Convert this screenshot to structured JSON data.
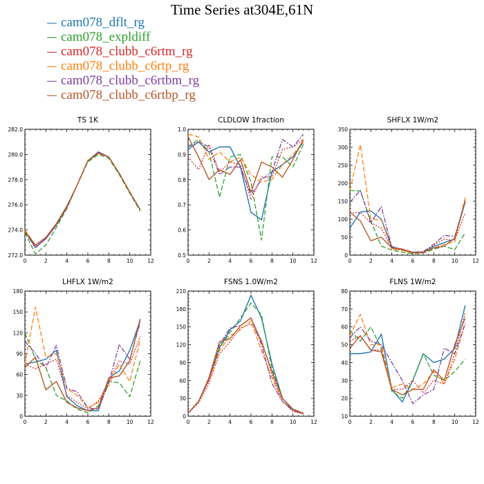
{
  "title": "Time Series at304E,61N",
  "legend": [
    {
      "name": "cam078_dflt_rg",
      "color": "#1f77b4"
    },
    {
      "name": "cam078_expldiff",
      "color": "#2ca02c"
    },
    {
      "name": "cam078_clubb_c6rtm_rg",
      "color": "#d62728"
    },
    {
      "name": "cam078_clubb_c6rtp_rg",
      "color": "#ff7f0e"
    },
    {
      "name": "cam078_clubb_c6rtbm_rg",
      "color": "#7b3f9e"
    },
    {
      "name": "cam078_clubb_c6rtbp_rg",
      "color": "#b5562a"
    }
  ],
  "chart_data": [
    {
      "type": "line",
      "title": "TS   1K",
      "xlim": [
        0,
        12
      ],
      "ylim": [
        272,
        282
      ],
      "xticks": [
        0,
        2,
        4,
        6,
        8,
        10,
        12
      ],
      "yticks": [
        272,
        274,
        276,
        278,
        280,
        282
      ],
      "ytick_labels": [
        "272.0",
        "274.0",
        "276.0",
        "278.0",
        "280.0",
        "282.0"
      ],
      "x": [
        0,
        1,
        2,
        3,
        4,
        5,
        6,
        7,
        8,
        9,
        10,
        11
      ],
      "series": [
        {
          "name": "cam078_dflt_rg",
          "values": [
            273.9,
            272.6,
            273.3,
            274.4,
            275.8,
            277.6,
            279.5,
            280.2,
            279.8,
            278.5,
            277.0,
            275.6
          ]
        },
        {
          "name": "cam078_expldiff",
          "values": [
            273.8,
            272.1,
            272.8,
            274.2,
            275.7,
            277.6,
            279.4,
            280.0,
            279.7,
            278.4,
            276.9,
            275.5
          ]
        },
        {
          "name": "cam078_clubb_c6rtm_rg",
          "values": [
            273.9,
            272.7,
            273.3,
            274.4,
            275.8,
            277.6,
            279.5,
            280.2,
            279.8,
            278.5,
            277.0,
            275.6
          ]
        },
        {
          "name": "cam078_clubb_c6rtp_rg",
          "values": [
            274.0,
            272.8,
            273.4,
            274.5,
            275.8,
            277.6,
            279.5,
            280.1,
            279.8,
            278.5,
            277.0,
            275.6
          ]
        },
        {
          "name": "cam078_clubb_c6rtbm_rg",
          "values": [
            273.9,
            272.6,
            273.3,
            274.4,
            275.8,
            277.6,
            279.5,
            280.2,
            279.8,
            278.5,
            277.0,
            275.6
          ]
        },
        {
          "name": "cam078_clubb_c6rtbp_rg",
          "values": [
            273.9,
            272.8,
            273.4,
            274.5,
            275.9,
            277.6,
            279.5,
            280.1,
            279.8,
            278.5,
            277.0,
            275.6
          ]
        }
      ]
    },
    {
      "type": "line",
      "title": "CLDLOW   1fraction",
      "xlim": [
        0,
        12
      ],
      "ylim": [
        0.5,
        1.0
      ],
      "xticks": [
        0,
        2,
        4,
        6,
        8,
        10,
        12
      ],
      "yticks": [
        0.5,
        0.6,
        0.7,
        0.8,
        0.9,
        1.0
      ],
      "ytick_labels": [
        "0.5",
        "0.6",
        "0.7",
        "0.8",
        "0.9",
        "1.0"
      ],
      "x": [
        0,
        1,
        2,
        3,
        4,
        5,
        6,
        7,
        8,
        9,
        10,
        11
      ],
      "series": [
        {
          "name": "cam078_dflt_rg",
          "values": [
            0.92,
            0.95,
            0.91,
            0.93,
            0.93,
            0.85,
            0.67,
            0.64,
            0.83,
            0.86,
            0.89,
            0.95
          ]
        },
        {
          "name": "cam078_expldiff",
          "values": [
            0.93,
            0.96,
            0.91,
            0.73,
            0.89,
            0.9,
            0.79,
            0.56,
            0.89,
            0.89,
            0.85,
            0.94
          ]
        },
        {
          "name": "cam078_clubb_c6rtm_rg",
          "values": [
            0.89,
            0.84,
            0.94,
            0.83,
            0.87,
            0.86,
            0.72,
            0.81,
            0.81,
            0.92,
            0.93,
            0.96
          ]
        },
        {
          "name": "cam078_clubb_c6rtp_rg",
          "values": [
            0.98,
            0.97,
            0.88,
            0.91,
            0.87,
            0.89,
            0.82,
            0.79,
            0.8,
            0.86,
            0.9,
            0.95
          ]
        },
        {
          "name": "cam078_clubb_c6rtbm_rg",
          "values": [
            0.93,
            0.95,
            0.93,
            0.82,
            0.85,
            0.85,
            0.74,
            0.8,
            0.83,
            0.96,
            0.93,
            0.98
          ]
        },
        {
          "name": "cam078_clubb_c6rtbp_rg",
          "values": [
            0.97,
            0.89,
            0.8,
            0.84,
            0.82,
            0.88,
            0.75,
            0.87,
            0.85,
            0.81,
            0.88,
            0.96
          ]
        }
      ]
    },
    {
      "type": "line",
      "title": "SHFLX   1W/m2",
      "xlim": [
        0,
        12
      ],
      "ylim": [
        0,
        350
      ],
      "xticks": [
        0,
        2,
        4,
        6,
        8,
        10,
        12
      ],
      "yticks": [
        0,
        50,
        100,
        150,
        200,
        250,
        300,
        350
      ],
      "ytick_labels": [
        "0",
        "50",
        "100",
        "150",
        "200",
        "250",
        "300",
        "350"
      ],
      "x": [
        0,
        1,
        2,
        3,
        4,
        5,
        6,
        7,
        8,
        9,
        10,
        11
      ],
      "series": [
        {
          "name": "cam078_dflt_rg",
          "values": [
            75,
            120,
            123,
            100,
            24,
            15,
            8,
            8,
            24,
            35,
            45,
            148
          ]
        },
        {
          "name": "cam078_expldiff",
          "values": [
            180,
            178,
            95,
            25,
            14,
            8,
            4,
            6,
            16,
            25,
            15,
            62
          ]
        },
        {
          "name": "cam078_clubb_c6rtm_rg",
          "values": [
            118,
            118,
            90,
            75,
            18,
            14,
            6,
            6,
            28,
            45,
            40,
            118
          ]
        },
        {
          "name": "cam078_clubb_c6rtp_rg",
          "values": [
            180,
            307,
            100,
            98,
            17,
            13,
            6,
            8,
            20,
            30,
            38,
            160
          ]
        },
        {
          "name": "cam078_clubb_c6rtbm_rg",
          "values": [
            147,
            180,
            90,
            135,
            22,
            17,
            8,
            10,
            30,
            55,
            52,
            148
          ]
        },
        {
          "name": "cam078_clubb_c6rtbp_rg",
          "values": [
            120,
            95,
            40,
            50,
            20,
            17,
            7,
            8,
            20,
            25,
            48,
            152
          ]
        }
      ]
    },
    {
      "type": "line",
      "title": "LHFLX   1W/m2",
      "xlim": [
        0,
        12
      ],
      "ylim": [
        0,
        180
      ],
      "xticks": [
        0,
        2,
        4,
        6,
        8,
        10,
        12
      ],
      "yticks": [
        0,
        30,
        60,
        90,
        120,
        150,
        180
      ],
      "ytick_labels": [
        "0",
        "30",
        "60",
        "90",
        "120",
        "150",
        "180"
      ],
      "x": [
        0,
        1,
        2,
        3,
        4,
        5,
        6,
        7,
        8,
        9,
        10,
        11
      ],
      "series": [
        {
          "name": "cam078_dflt_rg",
          "values": [
            75,
            78,
            82,
            95,
            28,
            15,
            8,
            8,
            55,
            65,
            95,
            138
          ]
        },
        {
          "name": "cam078_expldiff",
          "values": [
            120,
            82,
            70,
            30,
            22,
            10,
            5,
            15,
            50,
            48,
            28,
            80
          ]
        },
        {
          "name": "cam078_clubb_c6rtm_rg",
          "values": [
            75,
            68,
            75,
            82,
            30,
            20,
            10,
            22,
            50,
            80,
            75,
            115
          ]
        },
        {
          "name": "cam078_clubb_c6rtp_rg",
          "values": [
            75,
            157,
            85,
            90,
            40,
            30,
            12,
            20,
            45,
            75,
            50,
            110
          ]
        },
        {
          "name": "cam078_clubb_c6rtbm_rg",
          "values": [
            108,
            90,
            70,
            102,
            40,
            35,
            12,
            10,
            48,
            103,
            82,
            135
          ]
        },
        {
          "name": "cam078_clubb_c6rtbp_rg",
          "values": [
            70,
            85,
            38,
            50,
            20,
            12,
            8,
            12,
            55,
            58,
            80,
            140
          ]
        }
      ]
    },
    {
      "type": "line",
      "title": "FSNS   1.0W/m2",
      "xlim": [
        0,
        12
      ],
      "ylim": [
        0,
        210
      ],
      "xticks": [
        0,
        2,
        4,
        6,
        8,
        10,
        12
      ],
      "yticks": [
        0,
        30,
        60,
        90,
        120,
        150,
        180,
        210
      ],
      "ytick_labels": [
        "0",
        "30",
        "60",
        "90",
        "120",
        "150",
        "180",
        "210"
      ],
      "x": [
        0,
        1,
        2,
        3,
        4,
        5,
        6,
        7,
        8,
        9,
        10,
        11
      ],
      "series": [
        {
          "name": "cam078_dflt_rg",
          "values": [
            5,
            25,
            62,
            115,
            145,
            160,
            203,
            165,
            88,
            30,
            10,
            4
          ]
        },
        {
          "name": "cam078_expldiff",
          "values": [
            5,
            25,
            62,
            115,
            140,
            165,
            190,
            170,
            80,
            30,
            10,
            4
          ]
        },
        {
          "name": "cam078_clubb_c6rtm_rg",
          "values": [
            5,
            22,
            55,
            105,
            125,
            148,
            155,
            128,
            70,
            25,
            8,
            4
          ]
        },
        {
          "name": "cam078_clubb_c6rtp_rg",
          "values": [
            5,
            25,
            60,
            110,
            135,
            145,
            160,
            110,
            65,
            25,
            10,
            4
          ]
        },
        {
          "name": "cam078_clubb_c6rtbm_rg",
          "values": [
            5,
            25,
            62,
            120,
            148,
            152,
            165,
            120,
            55,
            25,
            10,
            4
          ]
        },
        {
          "name": "cam078_clubb_c6rtbp_rg",
          "values": [
            5,
            25,
            65,
            125,
            130,
            152,
            165,
            125,
            75,
            30,
            12,
            5
          ]
        }
      ]
    },
    {
      "type": "line",
      "title": "FLNS   1W/m2",
      "xlim": [
        0,
        12
      ],
      "ylim": [
        10,
        80
      ],
      "xticks": [
        0,
        2,
        4,
        6,
        8,
        10,
        12
      ],
      "yticks": [
        10,
        20,
        30,
        40,
        50,
        60,
        70,
        80
      ],
      "ytick_labels": [
        "10",
        "20",
        "30",
        "40",
        "50",
        "60",
        "70",
        "80"
      ],
      "x": [
        0,
        1,
        2,
        3,
        4,
        5,
        6,
        7,
        8,
        9,
        10,
        11
      ],
      "series": [
        {
          "name": "cam078_dflt_rg",
          "values": [
            45,
            45,
            46,
            56,
            25,
            18,
            30,
            45,
            40,
            42,
            48,
            72
          ]
        },
        {
          "name": "cam078_expldiff",
          "values": [
            58,
            52,
            60,
            48,
            24,
            20,
            30,
            45,
            33,
            30,
            35,
            42
          ]
        },
        {
          "name": "cam078_clubb_c6rtm_rg",
          "values": [
            52,
            55,
            47,
            47,
            25,
            25,
            30,
            23,
            30,
            28,
            45,
            68
          ]
        },
        {
          "name": "cam078_clubb_c6rtp_rg",
          "values": [
            55,
            67,
            50,
            50,
            26,
            28,
            25,
            28,
            35,
            28,
            42,
            62
          ]
        },
        {
          "name": "cam078_clubb_c6rtbm_rg",
          "values": [
            54,
            60,
            52,
            50,
            40,
            30,
            17,
            22,
            25,
            48,
            45,
            62
          ]
        },
        {
          "name": "cam078_clubb_c6rtbp_rg",
          "values": [
            48,
            55,
            47,
            46,
            25,
            22,
            25,
            25,
            36,
            30,
            50,
            65
          ]
        }
      ]
    }
  ]
}
